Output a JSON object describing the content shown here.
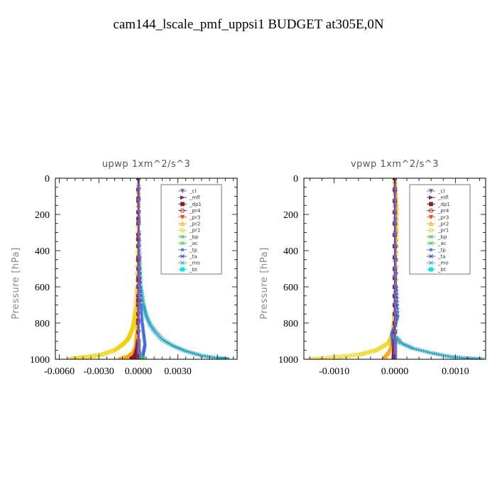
{
  "figure": {
    "title": "cam144_lscale_pmf_uppsi1  BUDGET at305E,0N"
  },
  "legend_labels": [
    "_cl",
    "_mfl",
    "_dp1",
    "_pr4",
    "_pr3",
    "_pr2",
    "_pr1",
    "_bp",
    "_ac",
    "_tp",
    "_ta",
    "_mo",
    "_bt"
  ],
  "colors": {
    "cl": "#7b68b0",
    "mfl": "#7a1f7a",
    "dp1": "#8b1a2b",
    "pr4": "#b22222",
    "pr3": "#ff4500",
    "pr2": "#ffa500",
    "pr1": "#f0d000",
    "bp": "#3cb371",
    "ac": "#32cd32",
    "tp": "#4169e1",
    "ta": "#1e3aa0",
    "mo": "#20a0c0",
    "bt": "#00e5e5"
  },
  "chart_data": [
    {
      "type": "line",
      "title": "upwp   1xm^2/s^3",
      "ylabel": "Pressure  [hPa]",
      "xlabel": "",
      "xlim": [
        -0.0063,
        0.0075
      ],
      "ylim": [
        1000,
        0
      ],
      "y_reversed": true,
      "xticks": [
        -0.006,
        -0.003,
        0.0,
        0.003
      ],
      "xtick_labels": [
        "-0.0060",
        "-0.0030",
        "0.0000",
        "0.0030"
      ],
      "yticks": [
        0,
        200,
        400,
        600,
        800,
        1000
      ],
      "ytick_labels": [
        "0",
        "200",
        "400",
        "600",
        "800",
        "1000"
      ],
      "legend_position": "top-right",
      "series": [
        {
          "name": "_pr1",
          "color_key": "pr1",
          "marker": "o",
          "x": [
            0.0,
            -5e-05,
            -0.0001,
            -0.0002,
            -0.0003,
            -0.0004,
            -0.0006,
            -0.0008,
            -0.0012,
            -0.0018,
            -0.0028,
            -0.0042,
            -0.0052
          ],
          "y": [
            0,
            300,
            600,
            720,
            780,
            820,
            860,
            890,
            920,
            950,
            975,
            990,
            1000
          ]
        },
        {
          "name": "_pr2",
          "color_key": "pr2",
          "marker": "^",
          "x": [
            0.0,
            -3e-05,
            -5e-05,
            -0.0001,
            -0.0002,
            -0.0004,
            -0.0008,
            -0.0015
          ],
          "y": [
            0,
            600,
            750,
            850,
            920,
            960,
            985,
            1000
          ]
        },
        {
          "name": "_mo",
          "color_key": "mo",
          "marker": "x",
          "x": [
            0.0,
            0.0001,
            0.0002,
            0.0004,
            0.0006,
            0.0009,
            0.0013,
            0.0018,
            0.0026,
            0.0036,
            0.0048,
            0.0062,
            0.0068
          ],
          "y": [
            0,
            400,
            600,
            700,
            760,
            810,
            850,
            890,
            925,
            955,
            980,
            995,
            1000
          ]
        },
        {
          "name": "_tp",
          "color_key": "tp",
          "marker": "*",
          "x": [
            0.0,
            0.0001,
            0.0002,
            0.0003,
            0.0004,
            0.0005,
            0.0004,
            0.0003
          ],
          "y": [
            0,
            500,
            700,
            800,
            860,
            920,
            960,
            1000
          ]
        },
        {
          "name": "_dp1",
          "color_key": "dp1",
          "marker": "s",
          "x": [
            0.0,
            0.0,
            -0.0001,
            -0.0002,
            -0.0003,
            -0.0005
          ],
          "y": [
            0,
            900,
            950,
            975,
            990,
            1000
          ]
        },
        {
          "name": "_bp",
          "color_key": "bp",
          "marker": "x",
          "x": [
            0.0,
            0.0,
            0.0002,
            0.0004
          ],
          "y": [
            0,
            950,
            990,
            1000
          ]
        },
        {
          "name": "_mfl",
          "color_key": "mfl",
          "marker": ">",
          "x": [
            0.0,
            0.0,
            0.0,
            0.0
          ],
          "y": [
            0,
            500,
            900,
            1000
          ]
        },
        {
          "name": "_cl",
          "color_key": "cl",
          "marker": "v",
          "x": [
            5e-05,
            5e-05,
            5e-05,
            5e-05
          ],
          "y": [
            0,
            500,
            900,
            1000
          ]
        }
      ]
    },
    {
      "type": "line",
      "title": "vpwp   1xm^2/s^3",
      "ylabel": "Pressure  [hPa]",
      "xlabel": "",
      "xlim": [
        -0.0015,
        0.0015
      ],
      "ylim": [
        1000,
        0
      ],
      "y_reversed": true,
      "xticks": [
        -0.001,
        0.0,
        0.001
      ],
      "xtick_labels": [
        "-0.0010",
        "0.0000",
        "0.0010"
      ],
      "yticks": [
        0,
        200,
        400,
        600,
        800,
        1000
      ],
      "ytick_labels": [
        "0",
        "200",
        "400",
        "600",
        "800",
        "1000"
      ],
      "legend_position": "top-right",
      "series": [
        {
          "name": "_pr1",
          "color_key": "pr1",
          "marker": "o",
          "x": [
            0.0,
            2e-05,
            3e-05,
            2e-05,
            0.0,
            -2e-05,
            -5e-05,
            -0.0001,
            -0.0003,
            -0.0006,
            -0.001,
            -0.0014
          ],
          "y": [
            0,
            150,
            300,
            600,
            750,
            820,
            870,
            910,
            950,
            975,
            990,
            1000
          ]
        },
        {
          "name": "_pr2",
          "color_key": "pr2",
          "marker": "^",
          "x": [
            0.0,
            3e-05,
            2e-05,
            0.0,
            -3e-05,
            -0.0001,
            -0.0002
          ],
          "y": [
            0,
            160,
            400,
            800,
            900,
            960,
            1000
          ]
        },
        {
          "name": "_mo",
          "color_key": "mo",
          "marker": "x",
          "x": [
            0.0,
            0.0,
            2e-05,
            0.0001,
            0.0003,
            0.0006,
            0.0009,
            0.0012,
            0.00145
          ],
          "y": [
            0,
            600,
            880,
            910,
            940,
            965,
            985,
            995,
            1000
          ]
        },
        {
          "name": "_tp",
          "color_key": "tp",
          "marker": "*",
          "x": [
            0.0,
            3e-05,
            5e-05,
            0.0,
            -5e-05,
            -3e-05,
            0.0
          ],
          "y": [
            0,
            600,
            760,
            820,
            860,
            920,
            1000
          ]
        },
        {
          "name": "_dp1",
          "color_key": "dp1",
          "marker": "s",
          "x": [
            0.0,
            0.0,
            0.0,
            -2e-05
          ],
          "y": [
            0,
            500,
            900,
            1000
          ]
        },
        {
          "name": "_mfl",
          "color_key": "mfl",
          "marker": ">",
          "x": [
            0.0,
            0.0,
            0.0,
            0.0
          ],
          "y": [
            0,
            500,
            900,
            1000
          ]
        },
        {
          "name": "_cl",
          "color_key": "cl",
          "marker": "v",
          "x": [
            1e-05,
            1e-05,
            1e-05,
            1e-05
          ],
          "y": [
            0,
            500,
            900,
            1000
          ]
        }
      ]
    }
  ]
}
